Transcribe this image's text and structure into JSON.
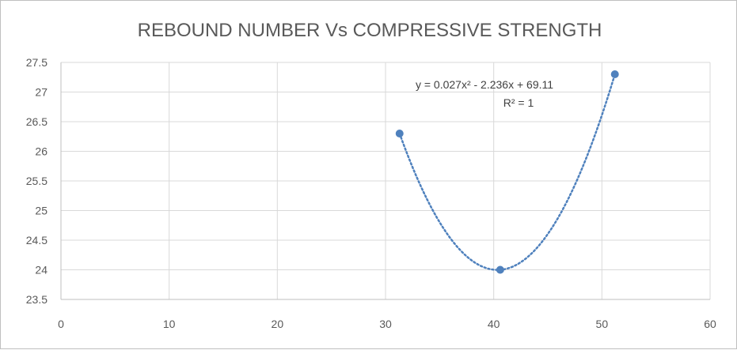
{
  "chart_data": {
    "type": "scatter",
    "title": "REBOUND NUMBER Vs COMPRESSIVE STRENGTH",
    "xlabel": "",
    "ylabel": "",
    "xlim": [
      0,
      60
    ],
    "ylim": [
      23.5,
      27.5
    ],
    "x_ticks": [
      "0",
      "10",
      "20",
      "30",
      "40",
      "50",
      "60"
    ],
    "y_ticks": [
      "23.5",
      "24",
      "24.5",
      "25",
      "25.5",
      "26",
      "26.5",
      "27",
      "27.5"
    ],
    "grid": true,
    "legend": "none",
    "series": [
      {
        "x": [
          31.3,
          40.6,
          51.2
        ],
        "y": [
          26.3,
          24.0,
          27.3
        ],
        "color": "#4f81bd"
      }
    ],
    "trendline": {
      "type": "polynomial",
      "order": 2,
      "color": "#4f81bd",
      "style": "dotted",
      "equation": "y = 0.027x² - 2.236x + 69.11",
      "r_squared": "R² = 1"
    }
  }
}
